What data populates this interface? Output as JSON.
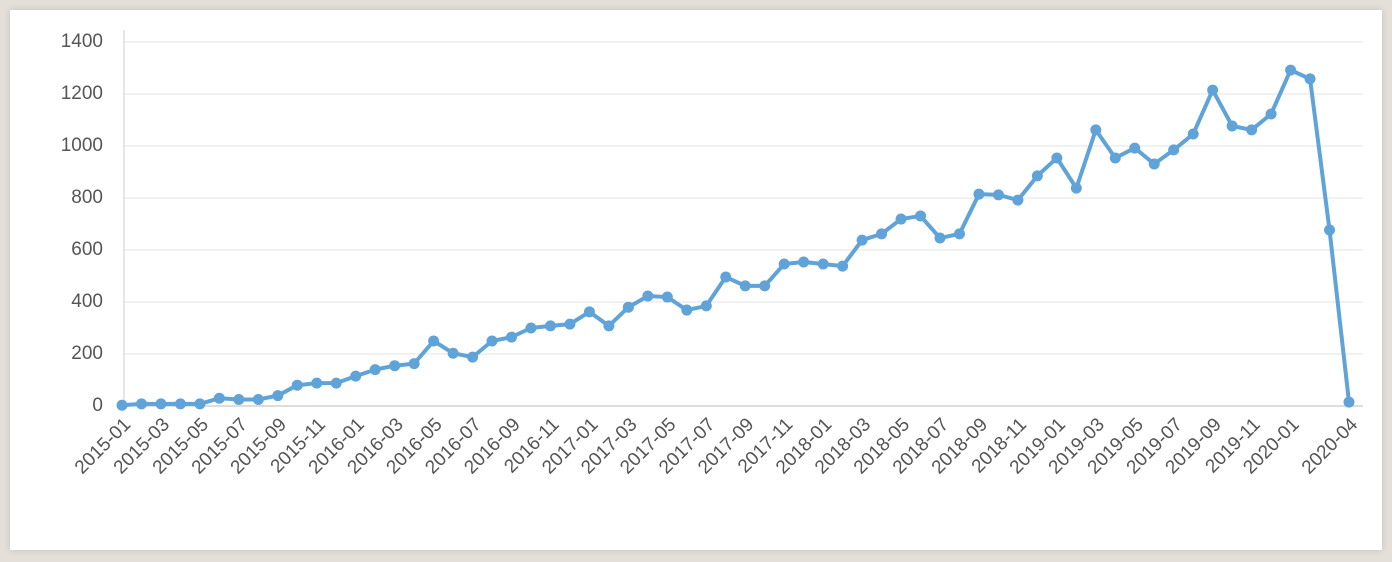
{
  "chart_data": {
    "type": "line",
    "categories": [
      "2015-01",
      null,
      "2015-03",
      null,
      "2015-05",
      null,
      "2015-07",
      null,
      "2015-09",
      null,
      "2015-11",
      null,
      "2016-01",
      null,
      "2016-03",
      null,
      "2016-05",
      null,
      "2016-07",
      null,
      "2016-09",
      null,
      "2016-11",
      null,
      "2017-01",
      null,
      "2017-03",
      null,
      "2017-05",
      null,
      "2017-07",
      null,
      "2017-09",
      null,
      "2017-11",
      null,
      "2018-01",
      null,
      "2018-03",
      null,
      "2018-05",
      null,
      "2018-07",
      null,
      "2018-09",
      null,
      "2018-11",
      null,
      "2019-01",
      null,
      "2019-03",
      null,
      "2019-05",
      null,
      "2019-07",
      null,
      "2019-09",
      null,
      "2019-11",
      null,
      "2020-01",
      null,
      null,
      "2020-04"
    ],
    "series": [
      {
        "name": null,
        "color": "#5fa3d8",
        "values": [
          3,
          8,
          8,
          8,
          8,
          30,
          25,
          25,
          40,
          80,
          88,
          88,
          115,
          140,
          155,
          163,
          250,
          203,
          188,
          250,
          265,
          300,
          308,
          315,
          362,
          308,
          380,
          423,
          419,
          369,
          385,
          496,
          462,
          462,
          546,
          554,
          546,
          538,
          638,
          662,
          719,
          731,
          646,
          662,
          815,
          812,
          792,
          885,
          954,
          838,
          1062,
          954,
          992,
          931,
          985,
          1046,
          1215,
          1077,
          1062,
          1123,
          1292,
          1258,
          677,
          15
        ]
      }
    ],
    "ylim": [
      0,
      1400
    ],
    "yticks": [
      0,
      200,
      400,
      600,
      800,
      1000,
      1200,
      1400
    ],
    "grid": true
  }
}
